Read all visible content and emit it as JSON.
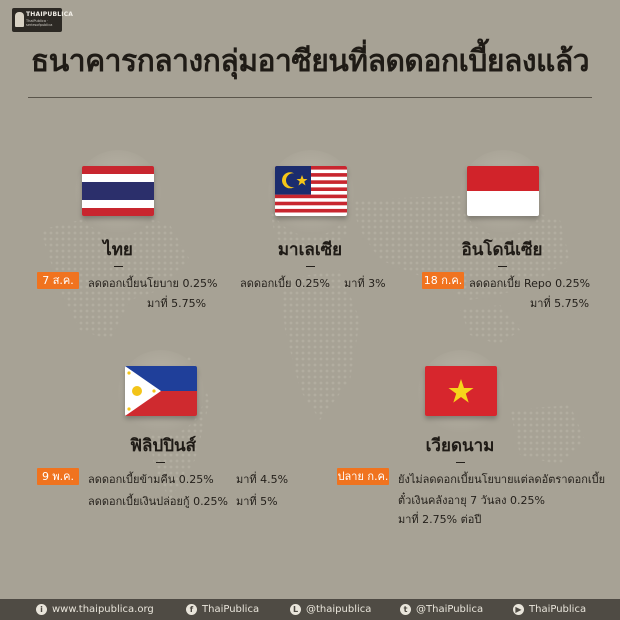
{
  "logo": {
    "name": "THAIPUBLICA",
    "tagline": "ThaiPublica · seriesofpublica"
  },
  "title": "ธนาคารกลางกลุ่มอาซียนที่ลดดอกเบี้ยลงแล้ว",
  "countries": {
    "thailand": {
      "name": "ไทย",
      "badge": "7 ส.ค.",
      "line1": "ลดดอกเบี้ยนโยบาย 0.25%",
      "line2": "มาที่ 5.75%"
    },
    "malaysia": {
      "name": "มาเลเซีย",
      "line1": "ลดดอกเบี้ย 0.25%",
      "line1b": "มาที่ 3%"
    },
    "indonesia": {
      "name": "อินโดนีเซีย",
      "badge": "18 ก.ค.",
      "line1": "ลดดอกเบี้ย Repo 0.25%",
      "line2": "มาที่ 5.75%"
    },
    "philippines": {
      "name": "ฟิลิปปินส์",
      "badge": "9 พ.ค.",
      "line1": "ลดดอกเบี้ยข้ามคืน 0.25%",
      "line1b": "มาที่ 4.5%",
      "line2": "ลดดอกเบี้ยเงินปล่อยกู้ 0.25%",
      "line2b": "มาที่ 5%"
    },
    "vietnam": {
      "name": "เวียดนาม",
      "badge": "ปลาย ก.ค.",
      "line1": "ยังไม่ลดดอกเบี้ยนโยบายแต่ลดอัตราดอกเบี้ย",
      "line2": "ตั๋วเงินคลังอายุ 7 วันลง 0.25%",
      "line3": "มาที่ 2.75% ต่อปี"
    }
  },
  "footer": {
    "website": "www.thaipublica.org",
    "facebook": "ThaiPublica",
    "line": "@thaipublica",
    "twitter": "@ThaiPublica",
    "youtube": "ThaiPublica"
  },
  "colors": {
    "background": "#a7a295",
    "badge": "#f0731f",
    "footer": "#4f4b44"
  }
}
